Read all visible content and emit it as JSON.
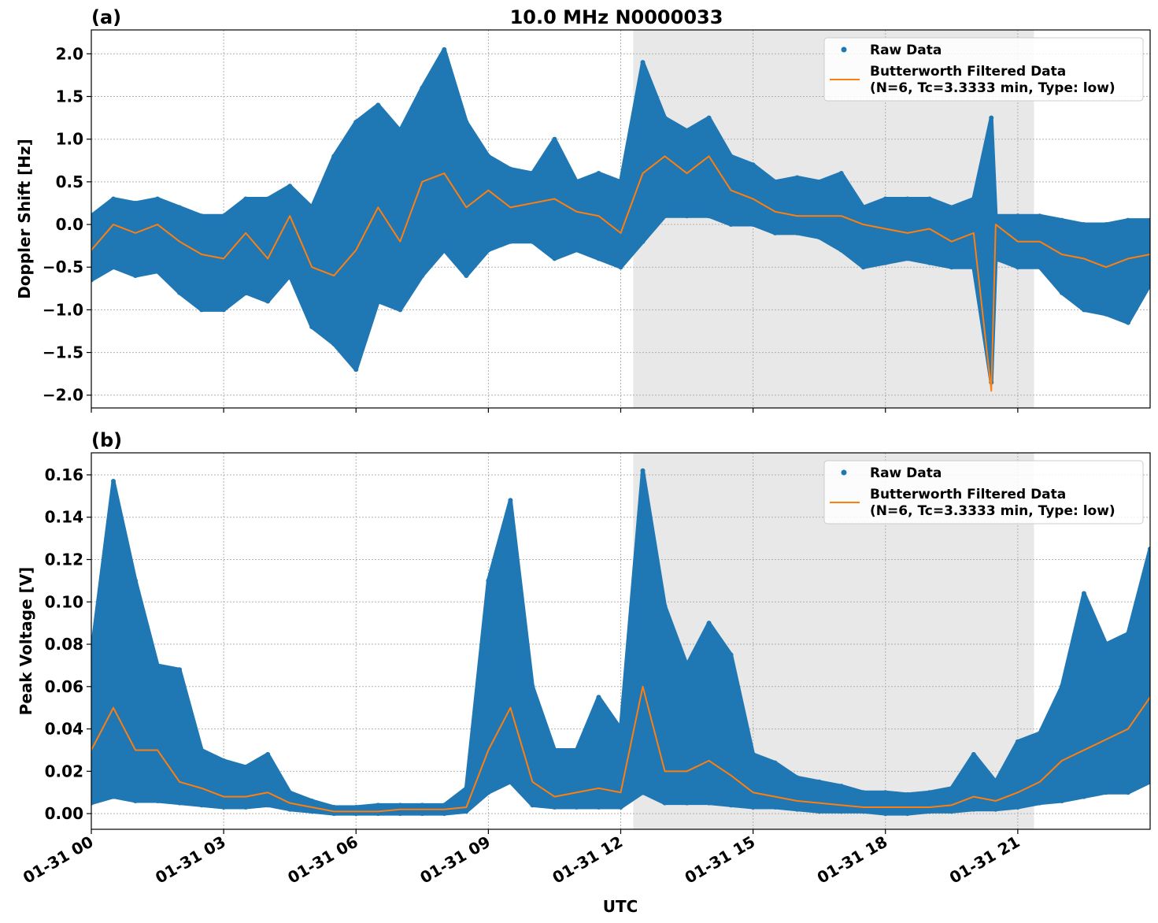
{
  "figure_title": "10.0 MHz N0000033",
  "x_tick_labels": [
    "01-31 00",
    "01-31 03",
    "01-31 06",
    "01-31 09",
    "01-31 12",
    "01-31 15",
    "01-31 18",
    "01-31 21"
  ],
  "xlabel": "UTC",
  "legend": {
    "raw": "Raw Data",
    "filtered_line1": "Butterworth Filtered Data",
    "filtered_line2": "(N=6, Tc=3.3333 min, Type: low)"
  },
  "colors": {
    "raw": "#1f77b4",
    "filtered": "#ff7f0e",
    "shade": "#e8e8e8"
  },
  "chart_data": [
    {
      "type": "scatter",
      "panel_label": "(a)",
      "ylabel": "Doppler Shift [Hz]",
      "xlim": [
        "00:00",
        "24:00"
      ],
      "ylim": [
        -2.15,
        2.28
      ],
      "yticks": [
        -2.0,
        -1.5,
        -1.0,
        -0.5,
        0.0,
        0.5,
        1.0,
        1.5,
        2.0
      ],
      "ytick_labels": [
        "−2.0",
        "−1.5",
        "−1.0",
        "−0.5",
        "0.0",
        "0.5",
        "1.0",
        "1.5",
        "2.0"
      ],
      "grid": true,
      "legend_position": "top-right",
      "shaded_interval": [
        "12:17",
        "21:22"
      ],
      "x": [
        "00:00",
        "00:30",
        "01:00",
        "01:30",
        "02:00",
        "02:30",
        "03:00",
        "03:30",
        "04:00",
        "04:30",
        "05:00",
        "05:30",
        "06:00",
        "06:30",
        "07:00",
        "07:30",
        "08:00",
        "08:30",
        "09:00",
        "09:30",
        "10:00",
        "10:30",
        "11:00",
        "11:30",
        "12:00",
        "12:30",
        "13:00",
        "13:30",
        "14:00",
        "14:30",
        "15:00",
        "15:30",
        "16:00",
        "16:30",
        "17:00",
        "17:30",
        "18:00",
        "18:30",
        "19:00",
        "19:30",
        "20:00",
        "20:24",
        "20:30",
        "21:00",
        "21:30",
        "22:00",
        "22:30",
        "23:00",
        "23:30",
        "24:00"
      ],
      "series": [
        {
          "name": "Raw Data",
          "kind": "scatter-range",
          "min": [
            -0.65,
            -0.5,
            -0.6,
            -0.55,
            -0.8,
            -1.0,
            -1.0,
            -0.8,
            -0.9,
            -0.6,
            -1.2,
            -1.4,
            -1.7,
            -0.9,
            -1.0,
            -0.6,
            -0.3,
            -0.6,
            -0.3,
            -0.2,
            -0.2,
            -0.4,
            -0.3,
            -0.4,
            -0.5,
            -0.2,
            0.1,
            0.1,
            0.1,
            0.0,
            0.0,
            -0.1,
            -0.1,
            -0.15,
            -0.3,
            -0.5,
            -0.45,
            -0.4,
            -0.45,
            -0.5,
            -0.5,
            -1.85,
            -0.4,
            -0.5,
            -0.5,
            -0.8,
            -1.0,
            -1.05,
            -1.15,
            -0.7
          ],
          "max": [
            0.1,
            0.3,
            0.25,
            0.3,
            0.2,
            0.1,
            0.1,
            0.3,
            0.3,
            0.45,
            0.2,
            0.8,
            1.2,
            1.4,
            1.1,
            1.6,
            2.05,
            1.2,
            0.8,
            0.65,
            0.6,
            1.0,
            0.5,
            0.6,
            0.5,
            1.9,
            1.25,
            1.1,
            1.25,
            0.8,
            0.7,
            0.5,
            0.55,
            0.5,
            0.6,
            0.2,
            0.3,
            0.3,
            0.3,
            0.2,
            0.3,
            1.25,
            0.1,
            0.1,
            0.1,
            0.05,
            0.0,
            0.0,
            0.05,
            0.05
          ]
        },
        {
          "name": "Butterworth Filtered Data",
          "kind": "line",
          "values": [
            -0.3,
            0.0,
            -0.1,
            0.0,
            -0.2,
            -0.35,
            -0.4,
            -0.1,
            -0.4,
            0.1,
            -0.5,
            -0.6,
            -0.3,
            0.2,
            -0.2,
            0.5,
            0.6,
            0.2,
            0.4,
            0.2,
            0.25,
            0.3,
            0.15,
            0.1,
            -0.1,
            0.6,
            0.8,
            0.6,
            0.8,
            0.4,
            0.3,
            0.15,
            0.1,
            0.1,
            0.1,
            0.0,
            -0.05,
            -0.1,
            -0.05,
            -0.2,
            -0.1,
            -1.95,
            0.0,
            -0.2,
            -0.2,
            -0.35,
            -0.4,
            -0.5,
            -0.4,
            -0.35
          ]
        }
      ]
    },
    {
      "type": "scatter",
      "panel_label": "(b)",
      "ylabel": "Peak Voltage [V]",
      "xlim": [
        "00:00",
        "24:00"
      ],
      "ylim": [
        -0.0074,
        0.1704
      ],
      "yticks": [
        0.0,
        0.02,
        0.04,
        0.06,
        0.08,
        0.1,
        0.12,
        0.14,
        0.16
      ],
      "ytick_labels": [
        "0.00",
        "0.02",
        "0.04",
        "0.06",
        "0.08",
        "0.10",
        "0.12",
        "0.14",
        "0.16"
      ],
      "grid": true,
      "legend_position": "top-right",
      "shaded_interval": [
        "12:17",
        "21:22"
      ],
      "x": [
        "00:00",
        "00:30",
        "01:00",
        "01:30",
        "02:00",
        "02:30",
        "03:00",
        "03:30",
        "04:00",
        "04:30",
        "05:00",
        "05:30",
        "06:00",
        "06:30",
        "07:00",
        "07:30",
        "08:00",
        "08:30",
        "09:00",
        "09:30",
        "10:00",
        "10:30",
        "11:00",
        "11:30",
        "12:00",
        "12:30",
        "13:00",
        "13:30",
        "14:00",
        "14:30",
        "15:00",
        "15:30",
        "16:00",
        "16:30",
        "17:00",
        "17:30",
        "18:00",
        "18:30",
        "19:00",
        "19:30",
        "20:00",
        "20:30",
        "21:00",
        "21:30",
        "22:00",
        "22:30",
        "23:00",
        "23:30",
        "24:00"
      ],
      "series": [
        {
          "name": "Raw Data",
          "kind": "scatter-range",
          "min": [
            0.005,
            0.008,
            0.006,
            0.006,
            0.005,
            0.004,
            0.003,
            0.003,
            0.004,
            0.002,
            0.001,
            0.0,
            0.0,
            0.0,
            0.0,
            0.0,
            0.0,
            0.001,
            0.01,
            0.015,
            0.004,
            0.003,
            0.003,
            0.003,
            0.003,
            0.01,
            0.005,
            0.005,
            0.005,
            0.004,
            0.003,
            0.003,
            0.002,
            0.001,
            0.001,
            0.001,
            0.0,
            0.0,
            0.001,
            0.001,
            0.002,
            0.002,
            0.003,
            0.005,
            0.006,
            0.008,
            0.01,
            0.01,
            0.015
          ],
          "max": [
            0.075,
            0.157,
            0.11,
            0.07,
            0.068,
            0.03,
            0.025,
            0.022,
            0.028,
            0.01,
            0.006,
            0.003,
            0.003,
            0.004,
            0.004,
            0.004,
            0.004,
            0.012,
            0.11,
            0.148,
            0.06,
            0.03,
            0.03,
            0.055,
            0.04,
            0.162,
            0.098,
            0.07,
            0.09,
            0.075,
            0.028,
            0.024,
            0.017,
            0.015,
            0.013,
            0.01,
            0.01,
            0.009,
            0.01,
            0.012,
            0.028,
            0.015,
            0.034,
            0.038,
            0.06,
            0.104,
            0.08,
            0.085,
            0.125
          ]
        },
        {
          "name": "Butterworth Filtered Data",
          "kind": "line",
          "values": [
            0.03,
            0.05,
            0.03,
            0.03,
            0.015,
            0.012,
            0.008,
            0.008,
            0.01,
            0.005,
            0.003,
            0.001,
            0.001,
            0.001,
            0.002,
            0.002,
            0.002,
            0.003,
            0.03,
            0.05,
            0.015,
            0.008,
            0.01,
            0.012,
            0.01,
            0.06,
            0.02,
            0.02,
            0.025,
            0.018,
            0.01,
            0.008,
            0.006,
            0.005,
            0.004,
            0.003,
            0.003,
            0.003,
            0.003,
            0.004,
            0.008,
            0.006,
            0.01,
            0.015,
            0.025,
            0.03,
            0.035,
            0.04,
            0.055
          ]
        }
      ]
    }
  ]
}
